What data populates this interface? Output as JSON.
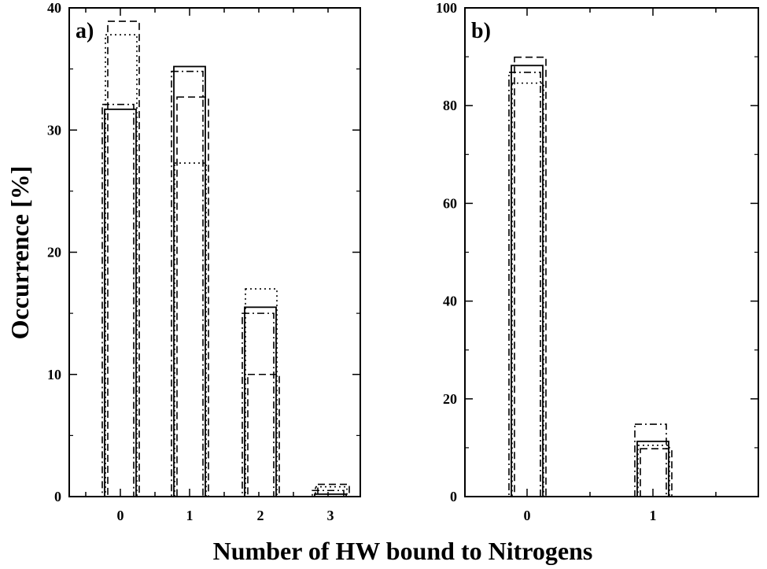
{
  "chart_data": [
    {
      "type": "bar",
      "panel_label": "a)",
      "categories": [
        "0",
        "1",
        "2",
        "3"
      ],
      "ylim": [
        0,
        40
      ],
      "yticks": [
        "0",
        "10",
        "20",
        "30",
        "40"
      ],
      "series": [
        {
          "style": "solid",
          "values": [
            31.7,
            35.2,
            15.5,
            0.2
          ]
        },
        {
          "style": "dashed",
          "values": [
            38.9,
            32.7,
            10.0,
            1.0
          ]
        },
        {
          "style": "dash-dot",
          "values": [
            32.1,
            34.8,
            15.0,
            0.5
          ]
        },
        {
          "style": "dotted",
          "values": [
            37.8,
            27.3,
            17.0,
            0.8
          ]
        }
      ]
    },
    {
      "type": "bar",
      "panel_label": "b)",
      "categories": [
        "0",
        "1"
      ],
      "ylim": [
        0,
        100
      ],
      "yticks": [
        "0",
        "20",
        "40",
        "60",
        "80",
        "100"
      ],
      "series": [
        {
          "style": "solid",
          "values": [
            88.2,
            11.3
          ]
        },
        {
          "style": "dashed",
          "values": [
            89.9,
            9.8
          ]
        },
        {
          "style": "dash-dot",
          "values": [
            86.8,
            14.8
          ]
        },
        {
          "style": "dotted",
          "values": [
            84.6,
            10.5
          ]
        }
      ]
    }
  ],
  "ylabel": "Occurrence [%]",
  "xlabel": "Number of HW bound to Nitrogens"
}
